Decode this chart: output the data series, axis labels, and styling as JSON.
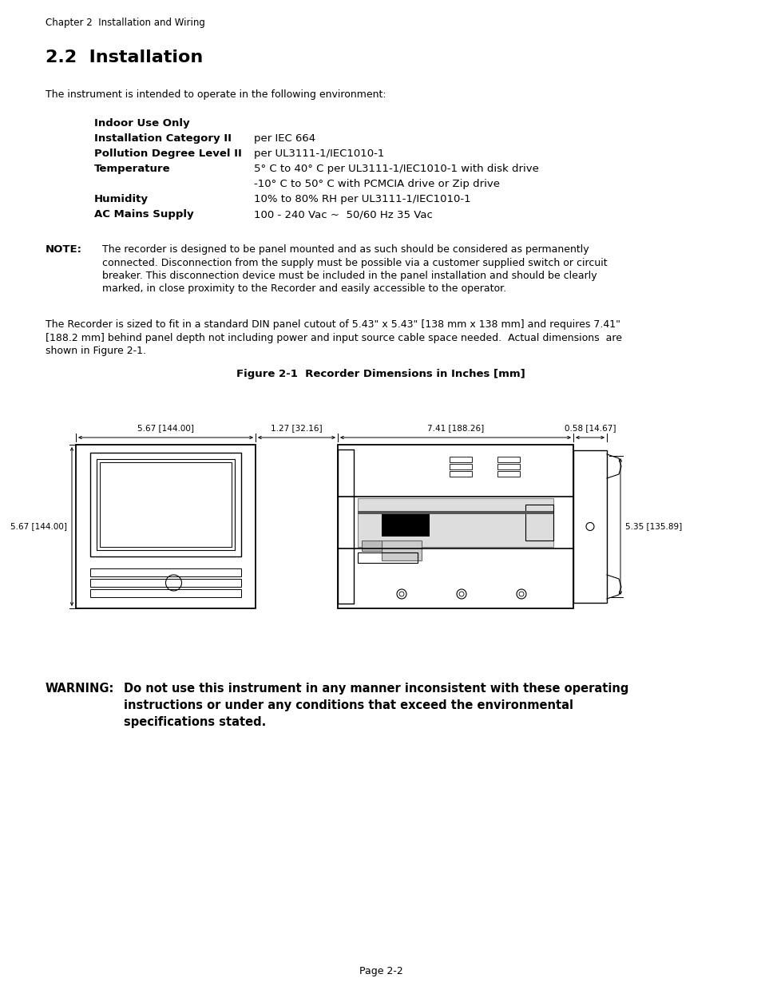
{
  "page_title": "Chapter 2  Installation and Wiring",
  "section_title": "2.2  Installation",
  "intro_text": "The instrument is intended to operate in the following environment:",
  "spec_items": [
    {
      "label": "Indoor Use Only",
      "value": "",
      "bold_label": true
    },
    {
      "label": "Installation Category II",
      "value": "per IEC 664",
      "bold_label": true
    },
    {
      "label": "Pollution Degree Level II",
      "value": "per UL3111-1/IEC1010-1",
      "bold_label": true
    },
    {
      "label": "Temperature",
      "value": "5° C to 40° C per UL3111-1/IEC1010-1 with disk drive",
      "bold_label": true
    },
    {
      "label": "",
      "value": "-10° C to 50° C with PCMCIA drive or Zip drive",
      "bold_label": false
    },
    {
      "label": "Humidity",
      "value": "10% to 80% RH per UL3111-1/IEC1010-1",
      "bold_label": true
    },
    {
      "label": "AC Mains Supply",
      "value": "100 - 240 Vac ~  50/60 Hz 35 Vac",
      "bold_label": true
    }
  ],
  "note_label": "NOTE:",
  "note_lines": [
    "The recorder is designed to be panel mounted and as such should be considered as permanently",
    "connected. Disconnection from the supply must be possible via a customer supplied switch or circuit",
    "breaker. This disconnection device must be included in the panel installation and should be clearly",
    "marked, in close proximity to the Recorder and easily accessible to the operator."
  ],
  "body_lines": [
    "The Recorder is sized to fit in a standard DIN panel cutout of 5.43\" x 5.43\" [138 mm x 138 mm] and requires 7.41\"",
    "[188.2 mm] behind panel depth not including power and input source cable space needed.  Actual dimensions  are",
    "shown in Figure 2-1."
  ],
  "figure_title": "Figure 2-1  Recorder Dimensions in Inches [mm]",
  "dim_top_left": "5.67 [144.00]",
  "dim_top_mid": "1.27 [32.16]",
  "dim_top_right1": "7.41 [188.26]",
  "dim_top_right2": "0.58 [14.67]",
  "dim_left": "5.67 [144.00]",
  "dim_right": "5.35 [135.89]",
  "warning_label": "WARNING:",
  "warning_lines": [
    "Do not use this instrument in any manner inconsistent with these operating",
    "instructions or under any conditions that exceed the environmental",
    "specifications stated."
  ],
  "page_number": "Page 2-2"
}
